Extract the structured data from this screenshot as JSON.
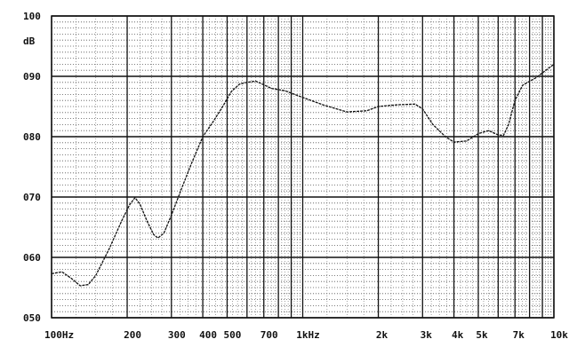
{
  "chart_data": {
    "type": "line",
    "title": "",
    "xlabel": "",
    "ylabel": "dB",
    "xscale": "log",
    "xlim": [
      100,
      10000
    ],
    "ylim": [
      50,
      100
    ],
    "grid": true,
    "x_ticks": [
      {
        "value": 100,
        "label": "100Hz"
      },
      {
        "value": 200,
        "label": "200"
      },
      {
        "value": 300,
        "label": "300"
      },
      {
        "value": 400,
        "label": "400"
      },
      {
        "value": 500,
        "label": "500"
      },
      {
        "value": 700,
        "label": "700"
      },
      {
        "value": 1000,
        "label": "1kHz"
      },
      {
        "value": 2000,
        "label": "2k"
      },
      {
        "value": 3000,
        "label": "3k"
      },
      {
        "value": 4000,
        "label": "4k"
      },
      {
        "value": 5000,
        "label": "5k"
      },
      {
        "value": 7000,
        "label": "7k"
      },
      {
        "value": 10000,
        "label": "10k"
      }
    ],
    "y_ticks": [
      {
        "value": 100,
        "label": "100"
      },
      {
        "value": 90,
        "label": "090"
      },
      {
        "value": 80,
        "label": "080"
      },
      {
        "value": 70,
        "label": "070"
      },
      {
        "value": 60,
        "label": "060"
      },
      {
        "value": 50,
        "label": "050"
      }
    ],
    "series": [
      {
        "color": "#111111",
        "x": [
          100,
          110,
          120,
          130,
          140,
          150,
          170,
          190,
          205,
          215,
          225,
          240,
          255,
          265,
          280,
          300,
          330,
          360,
          400,
          440,
          480,
          520,
          560,
          600,
          650,
          700,
          750,
          850,
          1000,
          1200,
          1500,
          1800,
          2000,
          2400,
          2800,
          3000,
          3300,
          3700,
          4000,
          4500,
          5000,
          5500,
          6000,
          6300,
          6600,
          7000,
          7500,
          8500,
          10000
        ],
        "y": [
          57.3,
          57.6,
          56.5,
          55.3,
          55.5,
          57.0,
          61.5,
          66.0,
          68.8,
          69.9,
          68.8,
          66.0,
          63.8,
          63.2,
          64.0,
          67.0,
          71.5,
          75.5,
          80.0,
          82.5,
          85.0,
          87.5,
          88.7,
          89.0,
          89.2,
          88.6,
          88.0,
          87.6,
          86.5,
          85.3,
          84.1,
          84.3,
          85.0,
          85.3,
          85.4,
          84.6,
          82.0,
          80.0,
          79.1,
          79.3,
          80.5,
          81.0,
          80.3,
          80.2,
          82.0,
          86.0,
          88.5,
          89.8,
          92.0
        ]
      }
    ]
  }
}
